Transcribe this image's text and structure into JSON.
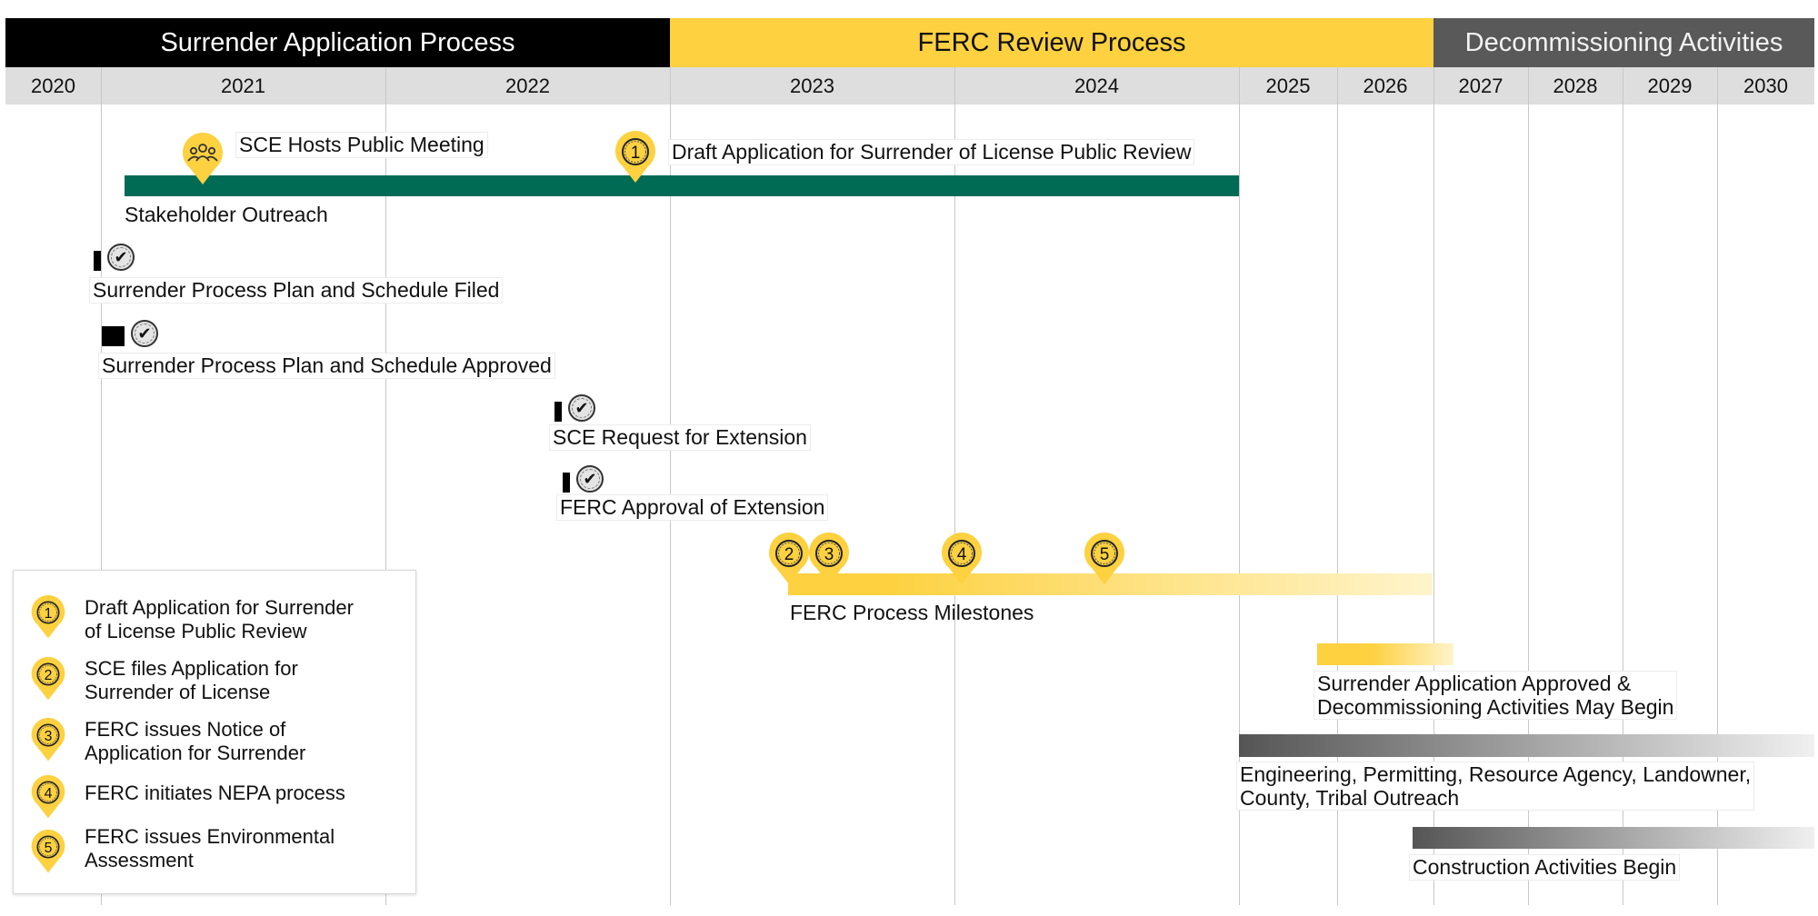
{
  "phases": {
    "application": "Surrender Application Process",
    "ferc": "FERC Review Process",
    "decommissioning": "Decommissioning Activities"
  },
  "years": [
    "2020",
    "2021",
    "2022",
    "2023",
    "2024",
    "2025",
    "2026",
    "2027",
    "2028",
    "2029",
    "2030"
  ],
  "events": {
    "public_meeting": "SCE Hosts Public Meeting",
    "draft_review": "Draft Application for Surrender of License Public Review",
    "stakeholder_outreach": "Stakeholder Outreach",
    "plan_filed": "Surrender Process Plan and Schedule Filed",
    "plan_approved": "Surrender Process Plan and Schedule Approved",
    "extension_request": "SCE Request for Extension",
    "extension_approval": "FERC Approval of Extension",
    "ferc_milestones": "FERC Process Milestones",
    "approved_line1": "Surrender Application Approved &",
    "approved_line2": "Decommissioning Activities May Begin",
    "engineering_line1": "Engineering, Permitting, Resource Agency, Landowner,",
    "engineering_line2": "County, Tribal Outreach",
    "construction": "Construction Activities Begin"
  },
  "milestone_numbers": [
    "1",
    "2",
    "3",
    "4",
    "5"
  ],
  "legend": [
    {
      "num": "1",
      "line1": "Draft Application for Surrender",
      "line2": "of License Public Review"
    },
    {
      "num": "2",
      "line1": "SCE files Application for",
      "line2": "Surrender of License"
    },
    {
      "num": "3",
      "line1": "FERC issues Notice of",
      "line2": "Application for Surrender"
    },
    {
      "num": "4",
      "line1": "FERC initiates NEPA process",
      "line2": ""
    },
    {
      "num": "5",
      "line1": "FERC issues Environmental",
      "line2": "Assessment"
    }
  ],
  "icons": {
    "meeting": "people-group-icon",
    "check": "checkmark-seal-icon",
    "pin": "map-pin-icon"
  },
  "colors": {
    "application_phase": "#000000",
    "ferc_phase": "#fdd13f",
    "decommissioning_phase": "#595959",
    "outreach_bar": "#006b54",
    "milestone_yellow": "#fdd13f"
  }
}
